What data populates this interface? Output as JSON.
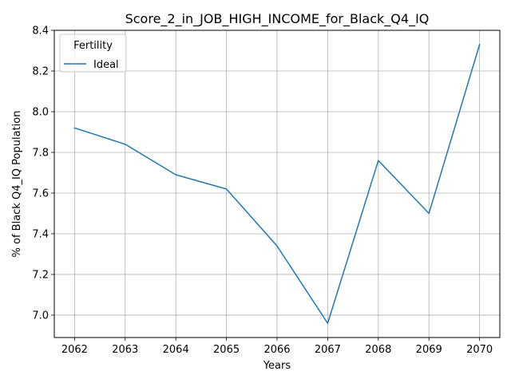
{
  "chart_data": {
    "type": "line",
    "title": "Score_2_in_JOB_HIGH_INCOME_for_Black_Q4_IQ",
    "xlabel": "Years",
    "ylabel": "% of Black Q4_IQ Population",
    "x": [
      2062,
      2063,
      2064,
      2065,
      2066,
      2067,
      2068,
      2069,
      2070
    ],
    "xticks": [
      "2062",
      "2063",
      "2064",
      "2065",
      "2066",
      "2067",
      "2068",
      "2069",
      "2070"
    ],
    "yticks": [
      "7.0",
      "7.2",
      "7.4",
      "7.6",
      "7.8",
      "8.0",
      "8.2",
      "8.4"
    ],
    "xlim": [
      2061.6,
      2070.4
    ],
    "ylim": [
      6.89,
      8.4
    ],
    "grid": true,
    "legend": {
      "title": "Fertility",
      "placement": "upper-left"
    },
    "series": [
      {
        "name": "Ideal",
        "color": "#1f77b4",
        "values": [
          7.92,
          7.84,
          7.69,
          7.62,
          7.34,
          6.96,
          7.76,
          7.5,
          8.33
        ]
      }
    ]
  }
}
